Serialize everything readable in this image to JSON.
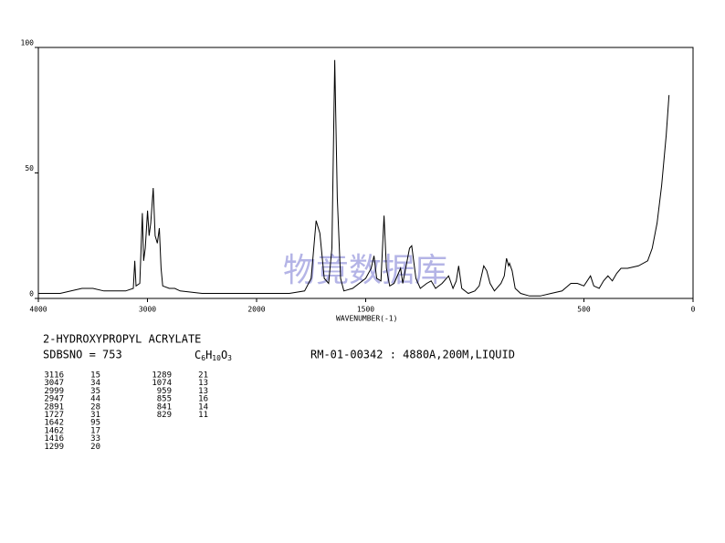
{
  "chart_data": {
    "type": "line",
    "xlabel": "WAVENUMBER(-1)",
    "xlim": [
      4000,
      0
    ],
    "xticks": [
      4000,
      3000,
      2000,
      1500,
      500,
      0
    ],
    "xscale_break": 2000,
    "ylim": [
      0,
      100
    ],
    "yticks": [
      0,
      50,
      100
    ],
    "grid": false,
    "x": [
      4000,
      3800,
      3700,
      3600,
      3500,
      3400,
      3300,
      3200,
      3130,
      3116,
      3105,
      3070,
      3047,
      3035,
      3020,
      2999,
      2985,
      2970,
      2947,
      2930,
      2910,
      2891,
      2875,
      2860,
      2800,
      2750,
      2700,
      2500,
      2300,
      2100,
      2000,
      1850,
      1780,
      1750,
      1727,
      1710,
      1690,
      1670,
      1655,
      1642,
      1630,
      1615,
      1600,
      1560,
      1500,
      1475,
      1462,
      1450,
      1430,
      1416,
      1405,
      1390,
      1370,
      1340,
      1330,
      1299,
      1289,
      1270,
      1250,
      1220,
      1200,
      1180,
      1150,
      1120,
      1100,
      1085,
      1074,
      1060,
      1030,
      1000,
      980,
      959,
      945,
      930,
      910,
      880,
      865,
      855,
      845,
      841,
      829,
      815,
      790,
      750,
      700,
      650,
      600,
      560,
      530,
      500,
      470,
      455,
      430,
      410,
      390,
      370,
      350,
      330,
      300,
      250,
      208,
      187,
      165,
      144,
      123,
      110
    ],
    "series": [
      {
        "name": "spectrum",
        "color": "#000000",
        "values": [
          2,
          2,
          3,
          4,
          4,
          3,
          3,
          3,
          4,
          15,
          5,
          6,
          34,
          15,
          20,
          35,
          25,
          30,
          44,
          25,
          22,
          28,
          12,
          5,
          4,
          4,
          3,
          2,
          2,
          2,
          2,
          2,
          3,
          8,
          31,
          26,
          8,
          6,
          20,
          95,
          40,
          8,
          3,
          4,
          8,
          12,
          17,
          8,
          7,
          33,
          12,
          5,
          6,
          12,
          6,
          20,
          21,
          8,
          4,
          6,
          7,
          4,
          6,
          9,
          4,
          7,
          13,
          4,
          2,
          3,
          5,
          13,
          11,
          6,
          3,
          6,
          9,
          16,
          13,
          14,
          11,
          4,
          2,
          1,
          1,
          2,
          3,
          6,
          6,
          5,
          9,
          5,
          4,
          7,
          9,
          7,
          10,
          12,
          12,
          13,
          15,
          20,
          30,
          45,
          65,
          81
        ]
      }
    ]
  },
  "compound": {
    "name": "2-HYDROXYPROPYL ACRYLATE",
    "sdbsno": "SDBSNO = 753",
    "formula": [
      "C",
      "6",
      "H",
      "10",
      "O",
      "3"
    ],
    "conditions": "RM-01-00342 : 4880A,200M,LIQUID"
  },
  "peaks": [
    [
      3116,
      15
    ],
    [
      3047,
      34
    ],
    [
      2999,
      35
    ],
    [
      2947,
      44
    ],
    [
      2891,
      28
    ],
    [
      1727,
      31
    ],
    [
      1642,
      95
    ],
    [
      1462,
      17
    ],
    [
      1416,
      33
    ],
    [
      1299,
      20
    ],
    [
      1289,
      21
    ],
    [
      1074,
      13
    ],
    [
      959,
      13
    ],
    [
      855,
      16
    ],
    [
      841,
      14
    ],
    [
      829,
      11
    ]
  ],
  "watermark": "物竟数据库"
}
